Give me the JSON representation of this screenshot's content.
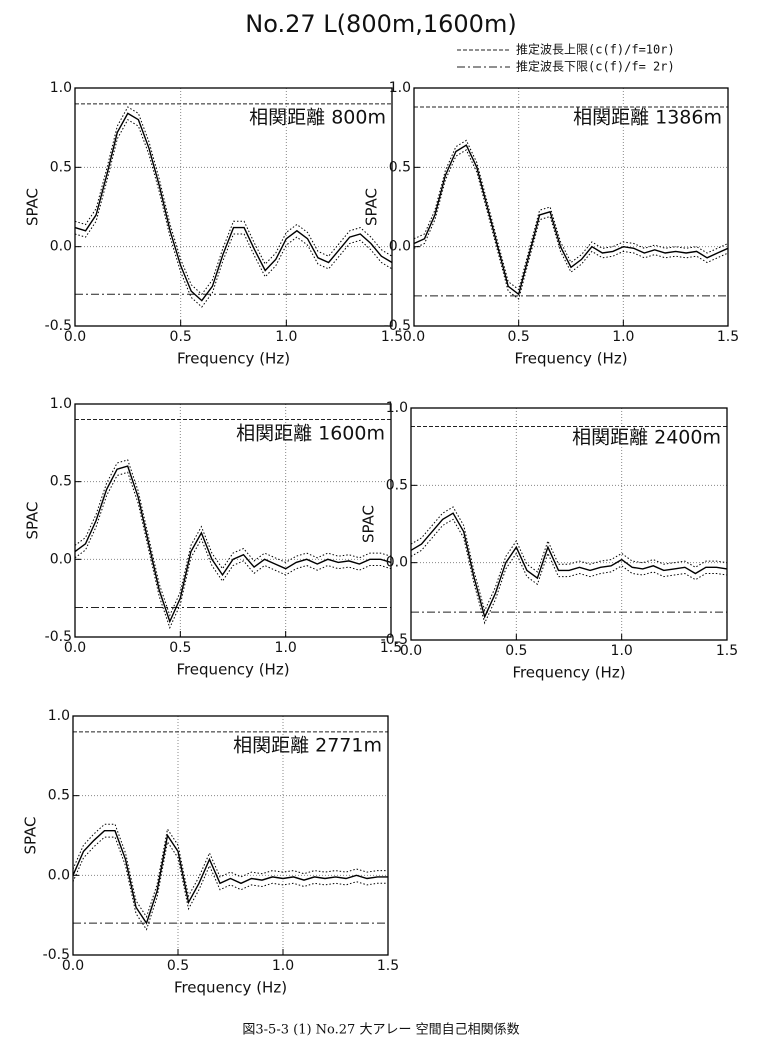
{
  "title": "No.27  L(800m,1600m)",
  "legend": [
    {
      "label": "推定波長上限(c(f)/f=10r)",
      "dash": "dashed"
    },
    {
      "label": "推定波長下限(c(f)/f= 2r)",
      "dash": "dashdot"
    }
  ],
  "caption": "図3-5-3 (1) No.27  大アレー  空間自己相関係数",
  "chart_data": [
    {
      "type": "line",
      "annotation": "相関距離  800m",
      "xlabel": "Frequency (Hz)",
      "ylabel": "SPAC",
      "xlim": [
        0,
        1.5
      ],
      "ylim": [
        -0.5,
        1
      ],
      "xticks": [
        {
          "value": 0,
          "label": "0.0"
        },
        0.5,
        {
          "value": 1,
          "label": "1.0"
        },
        1.5
      ],
      "yticks": [
        -0.5,
        {
          "value": 0,
          "label": "0.0"
        },
        0.5,
        {
          "value": 1,
          "label": "1.0"
        }
      ],
      "grid": true,
      "x": [
        0,
        0.05,
        0.1,
        0.15,
        0.2,
        0.25,
        0.3,
        0.35,
        0.4,
        0.45,
        0.5,
        0.55,
        0.6,
        0.65,
        0.7,
        0.75,
        0.8,
        0.85,
        0.9,
        0.95,
        1,
        1.05,
        1.1,
        1.15,
        1.2,
        1.25,
        1.3,
        1.35,
        1.4,
        1.45,
        1.5
      ],
      "series": [
        {
          "color": "#000000",
          "dash": "solid",
          "values": [
            0.12,
            0.1,
            0.2,
            0.45,
            0.72,
            0.84,
            0.8,
            0.62,
            0.38,
            0.1,
            -0.12,
            -0.28,
            -0.34,
            -0.25,
            -0.05,
            0.12,
            0.12,
            -0.02,
            -0.15,
            -0.08,
            0.05,
            0.1,
            0.05,
            -0.07,
            -0.1,
            -0.02,
            0.06,
            0.08,
            0.02,
            -0.06,
            -0.1
          ]
        },
        {
          "color": "#000000",
          "dash": "dotted",
          "values": [
            0.16,
            0.14,
            0.24,
            0.49,
            0.76,
            0.88,
            0.84,
            0.66,
            0.42,
            0.14,
            -0.08,
            -0.24,
            -0.3,
            -0.21,
            -0.01,
            0.16,
            0.16,
            0.02,
            -0.11,
            -0.04,
            0.09,
            0.14,
            0.09,
            -0.03,
            -0.06,
            0.02,
            0.1,
            0.12,
            0.06,
            -0.02,
            -0.06
          ]
        },
        {
          "color": "#000000",
          "dash": "dotted",
          "values": [
            0.08,
            0.06,
            0.16,
            0.41,
            0.68,
            0.8,
            0.76,
            0.58,
            0.34,
            0.06,
            -0.16,
            -0.32,
            -0.38,
            -0.29,
            -0.09,
            0.08,
            0.08,
            -0.06,
            -0.19,
            -0.12,
            0.01,
            0.06,
            0.01,
            -0.11,
            -0.14,
            -0.06,
            0.02,
            0.04,
            -0.02,
            -0.1,
            -0.14
          ]
        }
      ],
      "limit_lines": [
        {
          "value": 0.9,
          "dash": "dashed"
        },
        {
          "value": -0.3,
          "dash": "dashdot"
        }
      ]
    },
    {
      "type": "line",
      "annotation": "相関距離  1386m",
      "xlabel": "Frequency (Hz)",
      "ylabel": "SPAC",
      "xlim": [
        0,
        1.5
      ],
      "ylim": [
        -0.5,
        1
      ],
      "xticks": [
        {
          "value": 0,
          "label": "0.0"
        },
        0.5,
        {
          "value": 1,
          "label": "1.0"
        },
        1.5
      ],
      "yticks": [
        -0.5,
        {
          "value": 0,
          "label": "0.0"
        },
        0.5,
        {
          "value": 1,
          "label": "1.0"
        }
      ],
      "grid": true,
      "x": [
        0,
        0.05,
        0.1,
        0.15,
        0.2,
        0.25,
        0.3,
        0.35,
        0.4,
        0.45,
        0.5,
        0.55,
        0.6,
        0.65,
        0.7,
        0.75,
        0.8,
        0.85,
        0.9,
        0.95,
        1,
        1.05,
        1.1,
        1.15,
        1.2,
        1.25,
        1.3,
        1.35,
        1.4,
        1.45,
        1.5
      ],
      "series": [
        {
          "color": "#000000",
          "dash": "solid",
          "values": [
            0.02,
            0.05,
            0.2,
            0.45,
            0.6,
            0.64,
            0.5,
            0.25,
            0,
            -0.25,
            -0.3,
            -0.05,
            0.2,
            0.22,
            0,
            -0.13,
            -0.08,
            0,
            -0.04,
            -0.03,
            0,
            -0.01,
            -0.04,
            -0.02,
            -0.04,
            -0.03,
            -0.04,
            -0.03,
            -0.07,
            -0.04,
            -0.01
          ]
        },
        {
          "color": "#000000",
          "dash": "dotted",
          "values": [
            0.05,
            0.08,
            0.23,
            0.48,
            0.63,
            0.67,
            0.53,
            0.28,
            0.03,
            -0.22,
            -0.27,
            -0.02,
            0.23,
            0.25,
            0.03,
            -0.1,
            -0.05,
            0.03,
            -0.01,
            0,
            0.03,
            0.02,
            -0.01,
            0.01,
            -0.01,
            0,
            -0.01,
            0,
            -0.04,
            -0.01,
            0.02
          ]
        },
        {
          "color": "#000000",
          "dash": "dotted",
          "values": [
            -0.01,
            0.02,
            0.17,
            0.42,
            0.57,
            0.61,
            0.47,
            0.22,
            -0.03,
            -0.28,
            -0.33,
            -0.08,
            0.17,
            0.19,
            -0.03,
            -0.16,
            -0.11,
            -0.03,
            -0.07,
            -0.06,
            -0.03,
            -0.04,
            -0.07,
            -0.05,
            -0.07,
            -0.06,
            -0.07,
            -0.06,
            -0.1,
            -0.07,
            -0.04
          ]
        }
      ],
      "limit_lines": [
        {
          "value": 0.88,
          "dash": "dashed"
        },
        {
          "value": -0.31,
          "dash": "dashdot"
        }
      ]
    },
    {
      "type": "line",
      "annotation": "相関距離  1600m",
      "xlabel": "Frequency (Hz)",
      "ylabel": "SPAC",
      "xlim": [
        0,
        1.5
      ],
      "ylim": [
        -0.5,
        1
      ],
      "xticks": [
        {
          "value": 0,
          "label": "0.0"
        },
        0.5,
        {
          "value": 1,
          "label": "1.0"
        },
        1.5
      ],
      "yticks": [
        -0.5,
        {
          "value": 0,
          "label": "0.0"
        },
        0.5,
        {
          "value": 1,
          "label": "1.0"
        }
      ],
      "grid": true,
      "x": [
        0,
        0.05,
        0.1,
        0.15,
        0.2,
        0.25,
        0.3,
        0.35,
        0.4,
        0.45,
        0.5,
        0.55,
        0.6,
        0.65,
        0.7,
        0.75,
        0.8,
        0.85,
        0.9,
        0.95,
        1,
        1.05,
        1.1,
        1.15,
        1.2,
        1.25,
        1.3,
        1.35,
        1.4,
        1.45,
        1.5
      ],
      "series": [
        {
          "color": "#000000",
          "dash": "solid",
          "values": [
            0.05,
            0.1,
            0.25,
            0.45,
            0.58,
            0.6,
            0.4,
            0.1,
            -0.2,
            -0.4,
            -0.25,
            0.05,
            0.17,
            0,
            -0.1,
            0,
            0.03,
            -0.05,
            0,
            -0.03,
            -0.06,
            -0.02,
            0,
            -0.03,
            0,
            -0.02,
            -0.01,
            -0.03,
            0,
            0,
            -0.02
          ]
        },
        {
          "color": "#000000",
          "dash": "dotted",
          "values": [
            0.09,
            0.14,
            0.29,
            0.49,
            0.62,
            0.64,
            0.44,
            0.14,
            -0.16,
            -0.36,
            -0.21,
            0.09,
            0.21,
            0.04,
            -0.06,
            0.04,
            0.07,
            -0.01,
            0.04,
            0.01,
            -0.02,
            0.02,
            0.04,
            0.01,
            0.04,
            0.02,
            0.03,
            0.01,
            0.04,
            0.04,
            0.02
          ]
        },
        {
          "color": "#000000",
          "dash": "dotted",
          "values": [
            0.01,
            0.06,
            0.21,
            0.41,
            0.54,
            0.56,
            0.36,
            0.06,
            -0.24,
            -0.44,
            -0.29,
            0.01,
            0.13,
            -0.04,
            -0.14,
            -0.04,
            -0.01,
            -0.09,
            -0.04,
            -0.07,
            -0.1,
            -0.06,
            -0.04,
            -0.07,
            -0.04,
            -0.06,
            -0.05,
            -0.07,
            -0.04,
            -0.04,
            -0.06
          ]
        }
      ],
      "limit_lines": [
        {
          "value": 0.9,
          "dash": "dashed"
        },
        {
          "value": -0.31,
          "dash": "dashdot"
        }
      ]
    },
    {
      "type": "line",
      "annotation": "相関距離  2400m",
      "xlabel": "Frequency (Hz)",
      "ylabel": "SPAC",
      "xlim": [
        0,
        1.5
      ],
      "ylim": [
        -0.5,
        1
      ],
      "xticks": [
        {
          "value": 0,
          "label": "0.0"
        },
        0.5,
        {
          "value": 1,
          "label": "1.0"
        },
        1.5
      ],
      "yticks": [
        -0.5,
        {
          "value": 0,
          "label": "0.0"
        },
        0.5,
        {
          "value": 1,
          "label": "1.0"
        }
      ],
      "grid": true,
      "x": [
        0,
        0.05,
        0.1,
        0.15,
        0.2,
        0.25,
        0.3,
        0.35,
        0.4,
        0.45,
        0.5,
        0.55,
        0.6,
        0.65,
        0.7,
        0.75,
        0.8,
        0.85,
        0.9,
        0.95,
        1,
        1.05,
        1.1,
        1.15,
        1.2,
        1.25,
        1.3,
        1.35,
        1.4,
        1.45,
        1.5
      ],
      "series": [
        {
          "color": "#000000",
          "dash": "solid",
          "values": [
            0.08,
            0.12,
            0.2,
            0.28,
            0.32,
            0.2,
            -0.1,
            -0.35,
            -0.2,
            0,
            0.1,
            -0.05,
            -0.1,
            0.1,
            -0.05,
            -0.05,
            -0.03,
            -0.05,
            -0.03,
            -0.02,
            0.02,
            -0.03,
            -0.04,
            -0.02,
            -0.05,
            -0.04,
            -0.03,
            -0.07,
            -0.03,
            -0.03,
            -0.04
          ]
        },
        {
          "color": "#000000",
          "dash": "dotted",
          "values": [
            0.12,
            0.16,
            0.24,
            0.32,
            0.36,
            0.24,
            -0.06,
            -0.31,
            -0.16,
            0.04,
            0.14,
            -0.01,
            -0.06,
            0.14,
            -0.01,
            -0.01,
            0.01,
            -0.01,
            0.01,
            0.02,
            0.06,
            0.01,
            0,
            0.02,
            -0.01,
            0,
            0.01,
            -0.03,
            0.01,
            0.01,
            0
          ]
        },
        {
          "color": "#000000",
          "dash": "dotted",
          "values": [
            0.04,
            0.08,
            0.16,
            0.24,
            0.28,
            0.16,
            -0.14,
            -0.39,
            -0.24,
            -0.04,
            0.06,
            -0.09,
            -0.14,
            0.06,
            -0.09,
            -0.09,
            -0.07,
            -0.09,
            -0.07,
            -0.06,
            -0.02,
            -0.07,
            -0.08,
            -0.06,
            -0.09,
            -0.08,
            -0.07,
            -0.11,
            -0.07,
            -0.07,
            -0.08
          ]
        }
      ],
      "limit_lines": [
        {
          "value": 0.88,
          "dash": "dashed"
        },
        {
          "value": -0.32,
          "dash": "dashdot"
        }
      ]
    },
    {
      "type": "line",
      "annotation": "相関距離  2771m",
      "xlabel": "Frequency (Hz)",
      "ylabel": "SPAC",
      "xlim": [
        0,
        1.5
      ],
      "ylim": [
        -0.5,
        1
      ],
      "xticks": [
        {
          "value": 0,
          "label": "0.0"
        },
        0.5,
        {
          "value": 1,
          "label": "1.0"
        },
        1.5
      ],
      "yticks": [
        -0.5,
        {
          "value": 0,
          "label": "0.0"
        },
        0.5,
        {
          "value": 1,
          "label": "1.0"
        }
      ],
      "grid": true,
      "x": [
        0,
        0.05,
        0.1,
        0.15,
        0.2,
        0.25,
        0.3,
        0.35,
        0.4,
        0.45,
        0.5,
        0.55,
        0.6,
        0.65,
        0.7,
        0.75,
        0.8,
        0.85,
        0.9,
        0.95,
        1,
        1.05,
        1.1,
        1.15,
        1.2,
        1.25,
        1.3,
        1.35,
        1.4,
        1.45,
        1.5
      ],
      "series": [
        {
          "color": "#000000",
          "dash": "solid",
          "values": [
            0,
            0.15,
            0.22,
            0.28,
            0.28,
            0.1,
            -0.2,
            -0.3,
            -0.1,
            0.25,
            0.15,
            -0.17,
            -0.05,
            0.1,
            -0.05,
            -0.02,
            -0.05,
            -0.02,
            -0.03,
            -0.01,
            -0.02,
            -0.01,
            -0.03,
            -0.01,
            -0.02,
            -0.01,
            -0.02,
            0,
            -0.02,
            -0.01,
            -0.01
          ]
        },
        {
          "color": "#000000",
          "dash": "dotted",
          "values": [
            0.04,
            0.19,
            0.26,
            0.32,
            0.32,
            0.14,
            -0.16,
            -0.26,
            -0.06,
            0.29,
            0.19,
            -0.13,
            -0.01,
            0.14,
            -0.01,
            0.02,
            -0.01,
            0.02,
            0.01,
            0.03,
            0.02,
            0.03,
            0.01,
            0.03,
            0.02,
            0.03,
            0.02,
            0.04,
            0.02,
            0.03,
            0.03
          ]
        },
        {
          "color": "#000000",
          "dash": "dotted",
          "values": [
            -0.04,
            0.11,
            0.18,
            0.24,
            0.24,
            0.06,
            -0.24,
            -0.34,
            -0.14,
            0.21,
            0.11,
            -0.21,
            -0.09,
            0.06,
            -0.09,
            -0.06,
            -0.09,
            -0.06,
            -0.07,
            -0.05,
            -0.06,
            -0.05,
            -0.07,
            -0.05,
            -0.06,
            -0.05,
            -0.06,
            -0.04,
            -0.06,
            -0.05,
            -0.05
          ]
        }
      ],
      "limit_lines": [
        {
          "value": 0.9,
          "dash": "dashed"
        },
        {
          "value": -0.3,
          "dash": "dashdot"
        }
      ]
    }
  ]
}
